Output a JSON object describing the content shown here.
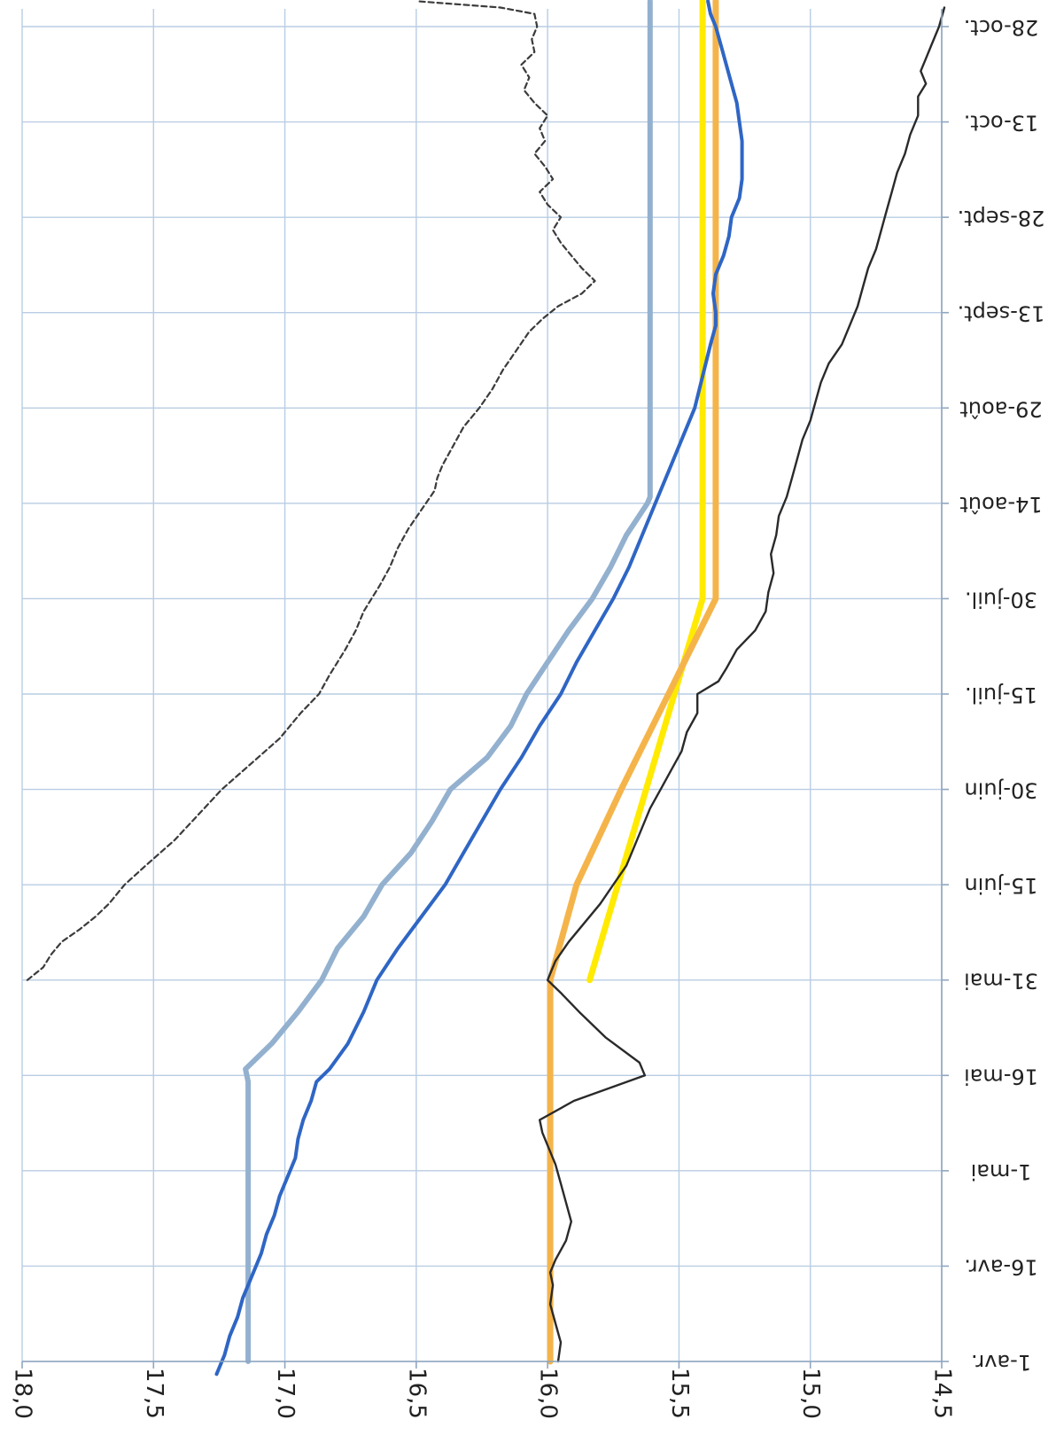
{
  "chart_data": {
    "type": "line",
    "orientation": "rotated-180",
    "title": "",
    "xlabel": "",
    "ylabel": "",
    "grid": true,
    "legend": "none",
    "y_ticks": [
      "18,0",
      "17,5",
      "17,0",
      "16,5",
      "16,0",
      "15,5",
      "15,0",
      "14,5"
    ],
    "y_tick_values": [
      18.0,
      17.5,
      17.0,
      16.5,
      16.0,
      15.5,
      15.0,
      14.5
    ],
    "ylim": [
      14.5,
      18.0
    ],
    "x_ticks": [
      "1-avr.",
      "16-avr.",
      "1-mai",
      "16-mai",
      "31-mai",
      "15-juin",
      "30-juin",
      "15-juil.",
      "30-juil.",
      "14-août",
      "29-août",
      "13-sept.",
      "28-sept.",
      "13-oct.",
      "28-oct."
    ],
    "x_tick_days": [
      0,
      15,
      30,
      45,
      60,
      75,
      90,
      105,
      120,
      135,
      150,
      165,
      180,
      195,
      210
    ],
    "series": [
      {
        "color": "#3b3b3b",
        "style": "dashed",
        "points": [
          [
            60,
            17.98
          ],
          [
            61,
            17.95
          ],
          [
            62,
            17.92
          ],
          [
            64,
            17.89
          ],
          [
            66,
            17.85
          ],
          [
            68,
            17.78
          ],
          [
            70,
            17.72
          ],
          [
            72,
            17.67
          ],
          [
            75,
            17.61
          ],
          [
            78,
            17.53
          ],
          [
            82,
            17.42
          ],
          [
            86,
            17.33
          ],
          [
            90,
            17.24
          ],
          [
            94,
            17.13
          ],
          [
            98,
            17.02
          ],
          [
            102,
            16.94
          ],
          [
            105,
            16.87
          ],
          [
            108,
            16.83
          ],
          [
            112,
            16.77
          ],
          [
            115,
            16.73
          ],
          [
            118,
            16.7
          ],
          [
            120,
            16.67
          ],
          [
            122,
            16.64
          ],
          [
            125,
            16.6
          ],
          [
            128,
            16.57
          ],
          [
            131,
            16.53
          ],
          [
            134,
            16.48
          ],
          [
            137,
            16.43
          ],
          [
            139,
            16.42
          ],
          [
            141,
            16.4
          ],
          [
            144,
            16.36
          ],
          [
            147,
            16.32
          ],
          [
            150,
            16.26
          ],
          [
            153,
            16.21
          ],
          [
            156,
            16.17
          ],
          [
            159,
            16.12
          ],
          [
            162,
            16.07
          ],
          [
            164,
            16.02
          ],
          [
            166,
            15.96
          ],
          [
            168,
            15.87
          ],
          [
            170,
            15.82
          ],
          [
            172,
            15.87
          ],
          [
            174,
            15.91
          ],
          [
            176,
            15.95
          ],
          [
            178,
            15.98
          ],
          [
            180,
            15.95
          ],
          [
            182,
            16.0
          ],
          [
            184,
            16.03
          ],
          [
            186,
            15.98
          ],
          [
            188,
            16.01
          ],
          [
            190,
            16.05
          ],
          [
            192,
            16.01
          ],
          [
            194,
            16.03
          ],
          [
            196,
            16.0
          ],
          [
            198,
            16.05
          ],
          [
            200,
            16.09
          ],
          [
            202,
            16.07
          ],
          [
            204,
            16.1
          ],
          [
            206,
            16.05
          ],
          [
            208,
            16.06
          ],
          [
            210,
            16.04
          ],
          [
            212,
            16.05
          ],
          [
            213,
            16.18
          ],
          [
            214,
            16.5
          ]
        ]
      },
      {
        "color": "#93b1cf",
        "style": "solid",
        "points": [
          [
            0,
            17.14
          ],
          [
            44,
            17.14
          ],
          [
            46,
            17.15
          ],
          [
            50,
            17.05
          ],
          [
            55,
            16.95
          ],
          [
            60,
            16.86
          ],
          [
            65,
            16.8
          ],
          [
            70,
            16.7
          ],
          [
            75,
            16.63
          ],
          [
            80,
            16.52
          ],
          [
            85,
            16.44
          ],
          [
            90,
            16.37
          ],
          [
            95,
            16.23
          ],
          [
            100,
            16.14
          ],
          [
            105,
            16.08
          ],
          [
            110,
            16.0
          ],
          [
            115,
            15.92
          ],
          [
            120,
            15.83
          ],
          [
            125,
            15.76
          ],
          [
            130,
            15.7
          ],
          [
            135,
            15.62
          ],
          [
            136,
            15.61
          ],
          [
            140,
            15.61
          ],
          [
            150,
            15.61
          ],
          [
            160,
            15.61
          ],
          [
            170,
            15.61
          ],
          [
            180,
            15.61
          ],
          [
            190,
            15.61
          ],
          [
            200,
            15.61
          ],
          [
            214,
            15.61
          ]
        ]
      },
      {
        "color": "#ffea00",
        "style": "solid",
        "points": [
          [
            60,
            15.84
          ],
          [
            120,
            15.41
          ],
          [
            214,
            15.41
          ]
        ]
      },
      {
        "color": "#f5b44a",
        "style": "solid",
        "points": [
          [
            0,
            15.99
          ],
          [
            30,
            15.99
          ],
          [
            60,
            15.99
          ],
          [
            75,
            15.89
          ],
          [
            90,
            15.72
          ],
          [
            105,
            15.54
          ],
          [
            120,
            15.36
          ],
          [
            140,
            15.36
          ],
          [
            170,
            15.36
          ],
          [
            214,
            15.36
          ]
        ]
      },
      {
        "color": "#2a2a2a",
        "style": "solid",
        "points": [
          [
            0,
            15.96
          ],
          [
            3,
            15.95
          ],
          [
            6,
            15.97
          ],
          [
            9,
            15.99
          ],
          [
            12,
            15.98
          ],
          [
            14,
            15.99
          ],
          [
            16,
            15.97
          ],
          [
            19,
            15.93
          ],
          [
            22,
            15.91
          ],
          [
            25,
            15.93
          ],
          [
            28,
            15.95
          ],
          [
            31,
            15.97
          ],
          [
            34,
            16.0
          ],
          [
            36,
            16.02
          ],
          [
            38,
            16.03
          ],
          [
            41,
            15.9
          ],
          [
            45,
            15.63
          ],
          [
            47,
            15.65
          ],
          [
            51,
            15.78
          ],
          [
            55,
            15.88
          ],
          [
            58,
            15.95
          ],
          [
            60,
            16.0
          ],
          [
            63,
            15.97
          ],
          [
            66,
            15.92
          ],
          [
            69,
            15.86
          ],
          [
            72,
            15.8
          ],
          [
            75,
            15.75
          ],
          [
            78,
            15.7
          ],
          [
            81,
            15.67
          ],
          [
            84,
            15.64
          ],
          [
            87,
            15.61
          ],
          [
            90,
            15.57
          ],
          [
            93,
            15.53
          ],
          [
            96,
            15.49
          ],
          [
            99,
            15.47
          ],
          [
            102,
            15.43
          ],
          [
            105,
            15.43
          ],
          [
            107,
            15.35
          ],
          [
            109,
            15.32
          ],
          [
            112,
            15.28
          ],
          [
            115,
            15.21
          ],
          [
            118,
            15.17
          ],
          [
            121,
            15.16
          ],
          [
            124,
            15.14
          ],
          [
            127,
            15.15
          ],
          [
            130,
            15.13
          ],
          [
            133,
            15.12
          ],
          [
            136,
            15.09
          ],
          [
            139,
            15.07
          ],
          [
            142,
            15.05
          ],
          [
            145,
            15.03
          ],
          [
            148,
            15.0
          ],
          [
            151,
            14.98
          ],
          [
            154,
            14.96
          ],
          [
            157,
            14.93
          ],
          [
            160,
            14.88
          ],
          [
            163,
            14.85
          ],
          [
            166,
            14.82
          ],
          [
            169,
            14.8
          ],
          [
            172,
            14.78
          ],
          [
            175,
            14.75
          ],
          [
            178,
            14.73
          ],
          [
            181,
            14.71
          ],
          [
            184,
            14.69
          ],
          [
            187,
            14.67
          ],
          [
            190,
            14.64
          ],
          [
            193,
            14.62
          ],
          [
            196,
            14.59
          ],
          [
            199,
            14.59
          ],
          [
            201,
            14.56
          ],
          [
            203,
            14.58
          ],
          [
            205,
            14.56
          ],
          [
            207,
            14.54
          ],
          [
            210,
            14.51
          ],
          [
            213,
            14.49
          ]
        ]
      },
      {
        "color": "#2f66c4",
        "style": "solid",
        "points": [
          [
            -2,
            17.26
          ],
          [
            1,
            17.23
          ],
          [
            4,
            17.21
          ],
          [
            7,
            17.18
          ],
          [
            10,
            17.16
          ],
          [
            12,
            17.14
          ],
          [
            14,
            17.12
          ],
          [
            17,
            17.09
          ],
          [
            20,
            17.07
          ],
          [
            23,
            17.04
          ],
          [
            26,
            17.02
          ],
          [
            29,
            16.99
          ],
          [
            32,
            16.96
          ],
          [
            35,
            16.95
          ],
          [
            38,
            16.93
          ],
          [
            41,
            16.9
          ],
          [
            44,
            16.88
          ],
          [
            46,
            16.83
          ],
          [
            50,
            16.76
          ],
          [
            55,
            16.7
          ],
          [
            60,
            16.65
          ],
          [
            65,
            16.57
          ],
          [
            70,
            16.48
          ],
          [
            75,
            16.39
          ],
          [
            80,
            16.32
          ],
          [
            85,
            16.25
          ],
          [
            90,
            16.18
          ],
          [
            95,
            16.1
          ],
          [
            100,
            16.03
          ],
          [
            105,
            15.95
          ],
          [
            110,
            15.89
          ],
          [
            115,
            15.82
          ],
          [
            120,
            15.75
          ],
          [
            125,
            15.69
          ],
          [
            130,
            15.64
          ],
          [
            135,
            15.59
          ],
          [
            140,
            15.54
          ],
          [
            145,
            15.49
          ],
          [
            150,
            15.44
          ],
          [
            155,
            15.41
          ],
          [
            160,
            15.38
          ],
          [
            163,
            15.36
          ],
          [
            165,
            15.36
          ],
          [
            168,
            15.37
          ],
          [
            171,
            15.36
          ],
          [
            174,
            15.33
          ],
          [
            177,
            15.31
          ],
          [
            180,
            15.3
          ],
          [
            183,
            15.27
          ],
          [
            186,
            15.26
          ],
          [
            189,
            15.26
          ],
          [
            192,
            15.26
          ],
          [
            195,
            15.27
          ],
          [
            198,
            15.28
          ],
          [
            201,
            15.3
          ],
          [
            204,
            15.32
          ],
          [
            207,
            15.34
          ],
          [
            210,
            15.36
          ],
          [
            212,
            15.38
          ],
          [
            214,
            15.39
          ]
        ]
      }
    ]
  }
}
